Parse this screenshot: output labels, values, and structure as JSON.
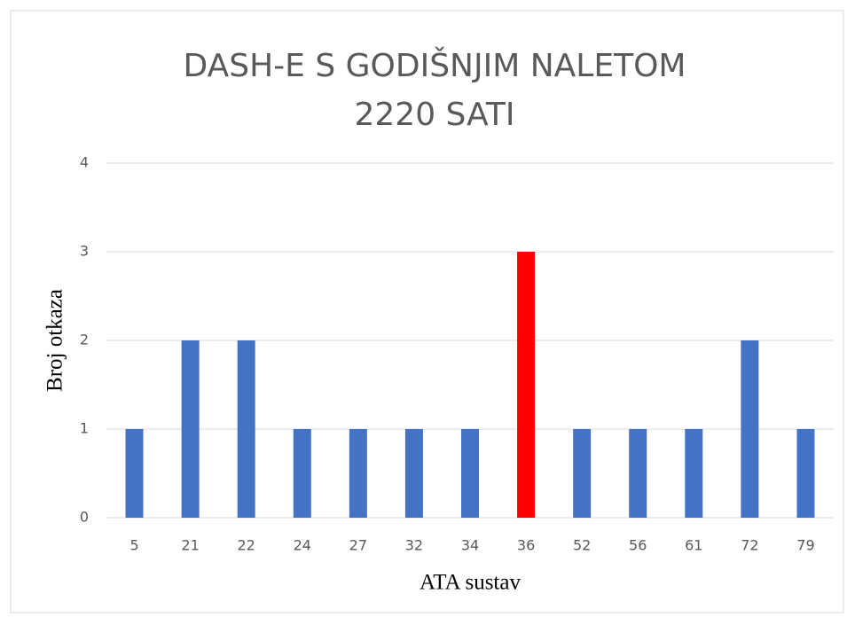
{
  "chart_data": {
    "type": "bar",
    "title": [
      "DASH-E S GODIŠNJIM NALETOM",
      "2220 SATI"
    ],
    "x_label": "ATA sustav",
    "y_label": "Broj otkaza",
    "categories": [
      "5",
      "21",
      "22",
      "24",
      "27",
      "32",
      "34",
      "36",
      "52",
      "56",
      "61",
      "72",
      "79"
    ],
    "values": [
      1,
      2,
      2,
      1,
      1,
      1,
      1,
      3,
      1,
      1,
      1,
      2,
      1
    ],
    "colors": [
      "#4472c4",
      "#4472c4",
      "#4472c4",
      "#4472c4",
      "#4472c4",
      "#4472c4",
      "#4472c4",
      "#ff0000",
      "#4472c4",
      "#4472c4",
      "#4472c4",
      "#4472c4",
      "#4472c4"
    ],
    "ylim": [
      0,
      4
    ],
    "yticks": [
      0,
      1,
      2,
      3,
      4
    ],
    "grid": true
  }
}
